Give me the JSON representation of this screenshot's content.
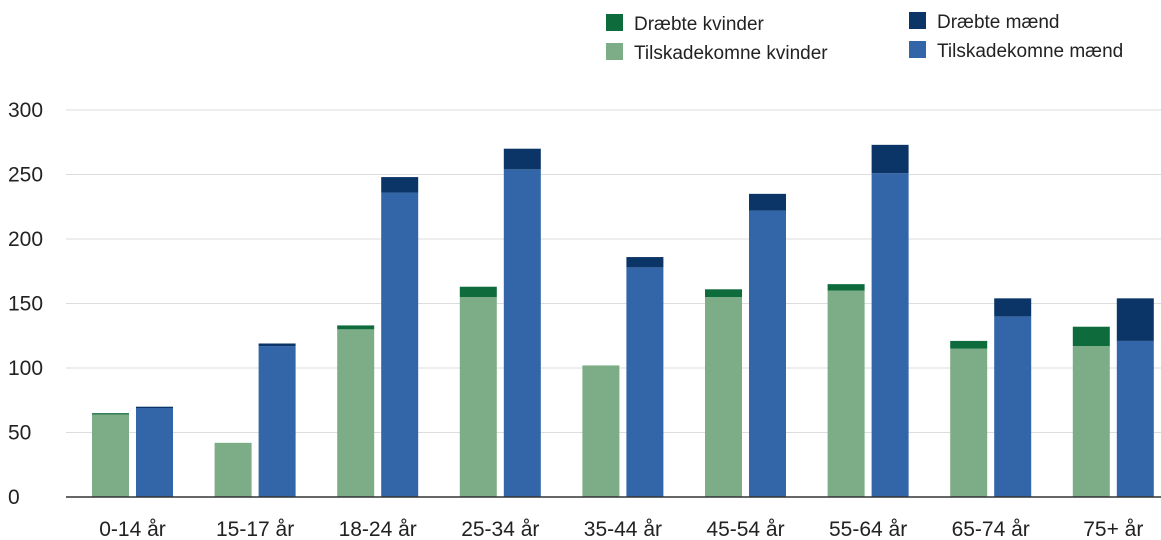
{
  "chart_data": {
    "type": "bar",
    "stacked": true,
    "grouped": true,
    "categories": [
      "0-14 år",
      "15-17 år",
      "18-24 år",
      "25-34 år",
      "35-44 år",
      "45-54 år",
      "55-64 år",
      "65-74 år",
      "75+ år"
    ],
    "groups": [
      {
        "name": "kvinder",
        "series": [
          {
            "name": "Tilskadekomne kvinder",
            "color": "#7cad87",
            "values": [
              64,
              42,
              130,
              155,
              102,
              155,
              160,
              115,
              117
            ]
          },
          {
            "name": "Dræbte kvinder",
            "color": "#0e6b3c",
            "values": [
              1,
              0,
              3,
              8,
              0,
              6,
              5,
              6,
              15
            ]
          }
        ]
      },
      {
        "name": "mænd",
        "series": [
          {
            "name": "Tilskadekomne mænd",
            "color": "#3366a8",
            "values": [
              69,
              117,
              236,
              254,
              178,
              222,
              251,
              140,
              121
            ]
          },
          {
            "name": "Dræbte mænd",
            "color": "#0a3566",
            "values": [
              1,
              2,
              12,
              16,
              8,
              13,
              22,
              14,
              33
            ]
          }
        ]
      }
    ],
    "legend": [
      {
        "name": "Dræbte kvinder",
        "color": "#0e6b3c"
      },
      {
        "name": "Tilskadekomne kvinder",
        "color": "#7cad87"
      },
      {
        "name": "Dræbte mænd",
        "color": "#0a3566"
      },
      {
        "name": "Tilskadekomne mænd",
        "color": "#3366a8"
      }
    ],
    "legend_position": "top-right",
    "yticks": [
      0,
      50,
      100,
      150,
      200,
      250,
      300
    ],
    "ylim": [
      0,
      300
    ],
    "grid": true,
    "title": "",
    "xlabel": "",
    "ylabel": ""
  }
}
